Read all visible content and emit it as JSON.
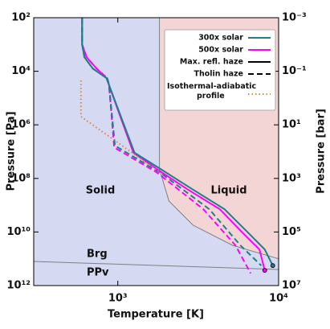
{
  "chart_data": {
    "type": "line",
    "xlabel": "Temperature [K]",
    "ylabel": "Pressure [Pa]",
    "y2label": "Pressure [bar]",
    "xscale": "log",
    "yscale": "log",
    "y_inverted": true,
    "xlim": [
      300,
      10000
    ],
    "ylim": [
      100,
      1000000000000.0
    ],
    "y2lim": [
      0.001,
      10000000.0
    ],
    "xticks": [
      {
        "value": 1000,
        "label": "10³"
      },
      {
        "value": 10000,
        "label": "10⁴"
      }
    ],
    "yticks": [
      {
        "value": 100,
        "label": "10²"
      },
      {
        "value": 10000,
        "label": "10⁴"
      },
      {
        "value": 1000000,
        "label": "10⁶"
      },
      {
        "value": 100000000,
        "label": "10⁸"
      },
      {
        "value": 10000000000,
        "label": "10¹⁰"
      },
      {
        "value": 1000000000000,
        "label": "10¹²"
      }
    ],
    "y2ticks": [
      {
        "value": 0.001,
        "label": "10⁻³"
      },
      {
        "value": 0.1,
        "label": "10⁻¹"
      },
      {
        "value": 10,
        "label": "10¹"
      },
      {
        "value": 1000,
        "label": "10³"
      },
      {
        "value": 100000,
        "label": "10⁵"
      },
      {
        "value": 10000000,
        "label": "10⁷"
      }
    ],
    "legend_position": "upper right",
    "legend": [
      {
        "name": "300x solar",
        "color": "#1f7f86",
        "dash": "solid"
      },
      {
        "name": "500x solar",
        "color": "#ff00ff",
        "dash": "solid"
      },
      {
        "name": "Max. refl. haze",
        "color": "#000000",
        "dash": "solid"
      },
      {
        "name": "Tholin haze",
        "color": "#000000",
        "dash": "dashed"
      },
      {
        "name": "Isothermal-adiabatic profile",
        "color": "#d2884a",
        "dash": "dotted"
      }
    ],
    "lines": [
      {
        "color": "#ff00ff",
        "dash": "dashed",
        "end_marker": false,
        "x": [
          600,
          600,
          640,
          740,
          860,
          880,
          950,
          1750,
          3400,
          5400,
          6700
        ],
        "y": [
          100,
          1000,
          3000,
          8000,
          18000,
          30000,
          7000000,
          60000000,
          1400000000,
          32000000000,
          350000000000
        ]
      },
      {
        "color": "#1f7f86",
        "dash": "dashed",
        "end_marker": false,
        "x": [
          600,
          600,
          620,
          700,
          860,
          880,
          960,
          1850,
          3700,
          5800,
          7800
        ],
        "y": [
          100,
          1000,
          3000,
          8000,
          18000,
          30000,
          6000000,
          63000000,
          1400000000,
          32000000000,
          180000000000
        ]
      },
      {
        "color": "#ff00ff",
        "dash": "solid",
        "end_marker": true,
        "x": [
          600,
          600,
          640,
          740,
          850,
          1250,
          1750,
          2700,
          4300,
          6000,
          7600,
          8200
        ],
        "y": [
          100,
          1000,
          3000,
          8000,
          18000,
          11000000,
          45000000,
          250000000,
          1400000000,
          11000000000,
          45000000000,
          270000000000
        ]
      },
      {
        "color": "#1f7f86",
        "dash": "solid",
        "end_marker": true,
        "x": [
          600,
          600,
          620,
          700,
          850,
          1270,
          1850,
          2900,
          4600,
          6500,
          8200,
          9200
        ],
        "y": [
          100,
          1000,
          3000,
          8000,
          18000,
          11000000,
          45000000,
          250000000,
          1400000000,
          11000000000,
          45000000000,
          180000000000
        ]
      },
      {
        "color": "#d2884a",
        "dash": "dotted",
        "end_marker": false,
        "x": [
          590,
          590,
          1850
        ],
        "y": [
          22000,
          490000,
          63000000
        ]
      }
    ],
    "regions": [
      {
        "label": "Solid",
        "color": "#d5d9f1"
      },
      {
        "label": "Liquid",
        "color": "#f3d5d5"
      }
    ],
    "melting_curve": {
      "color": "#808080",
      "x": [
        1815,
        1815,
        2080,
        2940,
        5210,
        10000
      ],
      "y": [
        100,
        45000000,
        700000000,
        5600000000,
        32000000000,
        100000000000
      ]
    },
    "phase_boundary": {
      "labels": [
        "Brg",
        "PPv"
      ],
      "color": "#808080",
      "x": [
        300,
        10000
      ],
      "y": [
        126000000000,
        250000000000
      ]
    }
  }
}
